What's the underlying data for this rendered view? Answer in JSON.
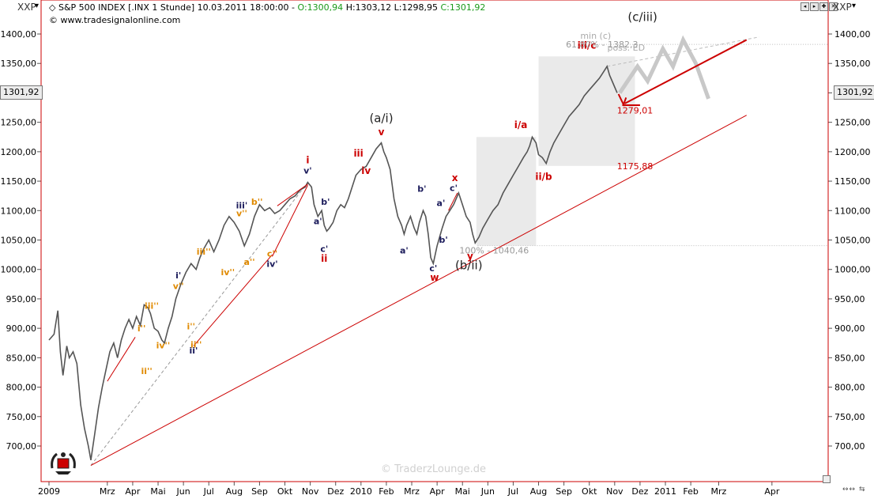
{
  "header": {
    "symbol": "XXP",
    "instrument": "S&P 500 INDEX [.INX  1 Stunde]",
    "datetime": "10.03.2011 18:00:00",
    "open": "O:1300,94",
    "high": "H:1303,12",
    "low": "L:1298,95",
    "close": "C:1301,92",
    "website": "www.tradesignalonline.com"
  },
  "right_symbol": "XXP",
  "price_left": "1301,92",
  "price_right": "1301,92",
  "watermark": "© TraderzLounge.de",
  "colors": {
    "up": "#1a9a1a",
    "down": "#cc0000",
    "price": "#555555",
    "line": "#cc0000",
    "zone": "#eaeaea"
  },
  "chart_data": {
    "type": "line",
    "title": "S&P 500 INDEX (.INX, 1 Stunde)",
    "ylim": [
      655,
      1425
    ],
    "y_ticks": [
      "1400,00",
      "1350,00",
      "1300,00",
      "1250,00",
      "1200,00",
      "1150,00",
      "1100,00",
      "1050,00",
      "1000,00",
      "950,00",
      "900,00",
      "850,00",
      "800,00",
      "750,00",
      "700,00"
    ],
    "y_tick_values": [
      1400,
      1350,
      1300,
      1250,
      1200,
      1150,
      1100,
      1050,
      1000,
      950,
      900,
      850,
      800,
      750,
      700
    ],
    "x_labels": [
      "2009",
      "Mrz",
      "Apr",
      "Mai",
      "Jun",
      "Jul",
      "Aug",
      "Sep",
      "Okt",
      "Nov",
      "Dez",
      "2010",
      "Feb",
      "Mrz",
      "Apr",
      "Mai",
      "Jun",
      "Jul",
      "Aug",
      "Sep",
      "Okt",
      "Nov",
      "Dez",
      "2011",
      "Feb",
      "Mrz",
      "Apr"
    ],
    "x_label_pos": [
      0,
      2.3,
      3.3,
      4.3,
      5.3,
      6.3,
      7.3,
      8.3,
      9.3,
      10.3,
      11.3,
      12.3,
      13.3,
      14.3,
      15.3,
      16.3,
      17.3,
      18.3,
      19.3,
      20.3,
      21.3,
      22.3,
      23.3,
      24.3,
      25.3,
      26.4,
      28.5
    ],
    "series": [
      {
        "name": "S&P 500",
        "points": [
          [
            0,
            880
          ],
          [
            0.2,
            890
          ],
          [
            0.35,
            930
          ],
          [
            0.45,
            860
          ],
          [
            0.55,
            820
          ],
          [
            0.7,
            870
          ],
          [
            0.8,
            850
          ],
          [
            0.95,
            860
          ],
          [
            1.1,
            840
          ],
          [
            1.25,
            770
          ],
          [
            1.4,
            730
          ],
          [
            1.55,
            700
          ],
          [
            1.65,
            676
          ],
          [
            1.8,
            720
          ],
          [
            1.95,
            765
          ],
          [
            2.1,
            800
          ],
          [
            2.25,
            830
          ],
          [
            2.4,
            860
          ],
          [
            2.55,
            875
          ],
          [
            2.7,
            850
          ],
          [
            2.85,
            880
          ],
          [
            3.0,
            900
          ],
          [
            3.15,
            915
          ],
          [
            3.3,
            900
          ],
          [
            3.45,
            920
          ],
          [
            3.6,
            905
          ],
          [
            3.75,
            940
          ],
          [
            3.9,
            935
          ],
          [
            4.0,
            925
          ],
          [
            4.15,
            900
          ],
          [
            4.3,
            895
          ],
          [
            4.45,
            880
          ],
          [
            4.55,
            875
          ],
          [
            4.7,
            900
          ],
          [
            4.85,
            920
          ],
          [
            5.0,
            950
          ],
          [
            5.2,
            975
          ],
          [
            5.4,
            995
          ],
          [
            5.6,
            1010
          ],
          [
            5.8,
            1000
          ],
          [
            5.95,
            1020
          ],
          [
            6.1,
            1035
          ],
          [
            6.3,
            1050
          ],
          [
            6.5,
            1030
          ],
          [
            6.7,
            1050
          ],
          [
            6.9,
            1075
          ],
          [
            7.1,
            1090
          ],
          [
            7.3,
            1080
          ],
          [
            7.5,
            1065
          ],
          [
            7.7,
            1040
          ],
          [
            7.9,
            1060
          ],
          [
            8.1,
            1090
          ],
          [
            8.3,
            1110
          ],
          [
            8.5,
            1100
          ],
          [
            8.7,
            1105
          ],
          [
            8.9,
            1095
          ],
          [
            9.1,
            1100
          ],
          [
            9.3,
            1110
          ],
          [
            9.5,
            1120
          ],
          [
            9.7,
            1125
          ],
          [
            9.9,
            1135
          ],
          [
            10.1,
            1140
          ],
          [
            10.2,
            1148
          ],
          [
            10.35,
            1140
          ],
          [
            10.45,
            1110
          ],
          [
            10.6,
            1090
          ],
          [
            10.75,
            1100
          ],
          [
            10.85,
            1075
          ],
          [
            10.95,
            1065
          ],
          [
            11.05,
            1070
          ],
          [
            11.2,
            1080
          ],
          [
            11.35,
            1100
          ],
          [
            11.5,
            1110
          ],
          [
            11.65,
            1105
          ],
          [
            11.8,
            1120
          ],
          [
            11.95,
            1140
          ],
          [
            12.1,
            1160
          ],
          [
            12.3,
            1170
          ],
          [
            12.5,
            1175
          ],
          [
            12.7,
            1190
          ],
          [
            12.9,
            1205
          ],
          [
            13.1,
            1215
          ],
          [
            13.2,
            1200
          ],
          [
            13.3,
            1190
          ],
          [
            13.45,
            1170
          ],
          [
            13.6,
            1120
          ],
          [
            13.75,
            1090
          ],
          [
            13.9,
            1075
          ],
          [
            14.0,
            1060
          ],
          [
            14.1,
            1075
          ],
          [
            14.25,
            1090
          ],
          [
            14.4,
            1070
          ],
          [
            14.5,
            1060
          ],
          [
            14.6,
            1080
          ],
          [
            14.75,
            1100
          ],
          [
            14.85,
            1090
          ],
          [
            14.95,
            1060
          ],
          [
            15.05,
            1020
          ],
          [
            15.15,
            1010
          ],
          [
            15.3,
            1040
          ],
          [
            15.5,
            1070
          ],
          [
            15.65,
            1090
          ],
          [
            15.8,
            1100
          ],
          [
            15.95,
            1110
          ],
          [
            16.05,
            1120
          ],
          [
            16.15,
            1130
          ],
          [
            16.3,
            1110
          ],
          [
            16.45,
            1090
          ],
          [
            16.6,
            1080
          ],
          [
            16.7,
            1060
          ],
          [
            16.8,
            1045
          ],
          [
            16.95,
            1055
          ],
          [
            17.1,
            1070
          ],
          [
            17.3,
            1085
          ],
          [
            17.5,
            1100
          ],
          [
            17.7,
            1110
          ],
          [
            17.9,
            1130
          ],
          [
            18.1,
            1145
          ],
          [
            18.3,
            1160
          ],
          [
            18.5,
            1175
          ],
          [
            18.7,
            1190
          ],
          [
            18.85,
            1200
          ],
          [
            18.95,
            1210
          ],
          [
            19.05,
            1225
          ],
          [
            19.2,
            1215
          ],
          [
            19.3,
            1195
          ],
          [
            19.45,
            1190
          ],
          [
            19.6,
            1180
          ],
          [
            19.75,
            1200
          ],
          [
            19.9,
            1215
          ],
          [
            20.1,
            1230
          ],
          [
            20.3,
            1245
          ],
          [
            20.5,
            1260
          ],
          [
            20.7,
            1270
          ],
          [
            20.9,
            1280
          ],
          [
            21.1,
            1295
          ],
          [
            21.3,
            1305
          ],
          [
            21.5,
            1315
          ],
          [
            21.7,
            1325
          ],
          [
            21.85,
            1335
          ],
          [
            22.0,
            1345
          ],
          [
            22.1,
            1330
          ],
          [
            22.2,
            1320
          ],
          [
            22.3,
            1310
          ],
          [
            22.4,
            1300
          ]
        ]
      },
      {
        "name": "Trendlinie",
        "points": [
          [
            1.65,
            667
          ],
          [
            27.5,
            1262
          ]
        ]
      }
    ],
    "annotations": {
      "wave_labels_large": [
        {
          "text": "(a/i)",
          "x": 13.1,
          "y": 1250
        },
        {
          "text": "(b/ii)",
          "x": 16.55,
          "y": 1000
        },
        {
          "text": "(c/iii)",
          "x": 23.4,
          "y": 1422
        }
      ],
      "wave_labels_red": [
        {
          "text": "v",
          "x": 13.1,
          "y": 1228
        },
        {
          "text": "i",
          "x": 10.2,
          "y": 1180
        },
        {
          "text": "ii",
          "x": 10.85,
          "y": 1013
        },
        {
          "text": "iii",
          "x": 12.2,
          "y": 1192
        },
        {
          "text": "iv",
          "x": 12.5,
          "y": 1162
        },
        {
          "text": "w",
          "x": 15.2,
          "y": 981
        },
        {
          "text": "x",
          "x": 16.0,
          "y": 1150
        },
        {
          "text": "y",
          "x": 16.6,
          "y": 1017
        },
        {
          "text": "i/a",
          "x": 18.6,
          "y": 1240
        },
        {
          "text": "ii/b",
          "x": 19.5,
          "y": 1152
        },
        {
          "text": "iii/c",
          "x": 21.2,
          "y": 1375
        }
      ],
      "wave_labels_navy": [
        {
          "text": "v'",
          "x": 10.2,
          "y": 1163
        },
        {
          "text": "iii'",
          "x": 7.6,
          "y": 1104
        },
        {
          "text": "iv'",
          "x": 8.8,
          "y": 1004
        },
        {
          "text": "ii'",
          "x": 5.7,
          "y": 857
        },
        {
          "text": "i'",
          "x": 5.1,
          "y": 985
        },
        {
          "text": "a'",
          "x": 10.6,
          "y": 1077
        },
        {
          "text": "b'",
          "x": 10.9,
          "y": 1110
        },
        {
          "text": "c'",
          "x": 10.85,
          "y": 1030
        },
        {
          "text": "b'",
          "x": 14.7,
          "y": 1132
        },
        {
          "text": "a'",
          "x": 14.0,
          "y": 1027
        },
        {
          "text": "c'",
          "x": 15.15,
          "y": 997
        },
        {
          "text": "a'",
          "x": 15.45,
          "y": 1108
        },
        {
          "text": "b'",
          "x": 15.55,
          "y": 1045
        },
        {
          "text": "c'",
          "x": 15.95,
          "y": 1133
        }
      ],
      "wave_labels_orange": [
        {
          "text": "v''",
          "x": 7.6,
          "y": 1090
        },
        {
          "text": "b''",
          "x": 8.2,
          "y": 1110
        },
        {
          "text": "a''",
          "x": 7.9,
          "y": 1008
        },
        {
          "text": "c''",
          "x": 8.8,
          "y": 1022
        },
        {
          "text": "iii''",
          "x": 6.1,
          "y": 1025
        },
        {
          "text": "iv''",
          "x": 7.05,
          "y": 990
        },
        {
          "text": "v''",
          "x": 5.1,
          "y": 967
        },
        {
          "text": "iii''",
          "x": 4.05,
          "y": 933
        },
        {
          "text": "iv''",
          "x": 4.5,
          "y": 866
        },
        {
          "text": "i''",
          "x": 3.65,
          "y": 895
        },
        {
          "text": "ii''",
          "x": 3.85,
          "y": 822
        },
        {
          "text": "i''",
          "x": 5.6,
          "y": 898
        },
        {
          "text": "ii''",
          "x": 5.8,
          "y": 867
        }
      ],
      "level_labels": [
        {
          "text": "min (c)",
          "x": 21.55,
          "y": 1392,
          "color": "#aaaaaa"
        },
        {
          "text": "61,80% - 1382,3",
          "x": 21.8,
          "y": 1377,
          "color": "#999999"
        },
        {
          "text": "poss. ED",
          "x": 22.75,
          "y": 1372,
          "color": "#aaaaaa"
        },
        {
          "text": "1279,01",
          "x": 23.1,
          "y": 1265,
          "color": "#cc0000"
        },
        {
          "text": "1175,88",
          "x": 23.1,
          "y": 1170,
          "color": "#cc0000"
        },
        {
          "text": "100% - 1040,46",
          "x": 17.55,
          "y": 1027,
          "color": "#999999"
        }
      ]
    }
  }
}
